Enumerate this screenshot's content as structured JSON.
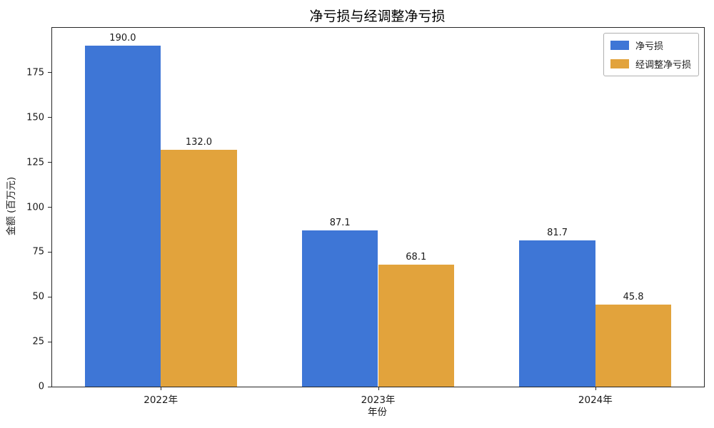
{
  "title": "净亏损与经调整净亏损",
  "chart_data": {
    "type": "bar",
    "title": "净亏损与经调整净亏损",
    "categories": [
      "2022年",
      "2023年",
      "2024年"
    ],
    "series": [
      {
        "name": "净亏损",
        "color": "#3e76d6",
        "values": [
          190.0,
          87.1,
          81.7
        ]
      },
      {
        "name": "经调整净亏损",
        "color": "#e2a33c",
        "values": [
          132.0,
          68.1,
          45.8
        ]
      }
    ],
    "value_labels": [
      [
        "190.0",
        "87.1",
        "81.7"
      ],
      [
        "132.0",
        "68.1",
        "45.8"
      ]
    ],
    "xlabel": "年份",
    "ylabel": "金额 (百万元)",
    "ylim": [
      0,
      200
    ],
    "yticks": [
      0,
      25,
      50,
      75,
      100,
      125,
      150,
      175
    ],
    "grid": false,
    "legend_position": "upper right",
    "axis_color": "#262626",
    "background_color": "#ffffff"
  }
}
